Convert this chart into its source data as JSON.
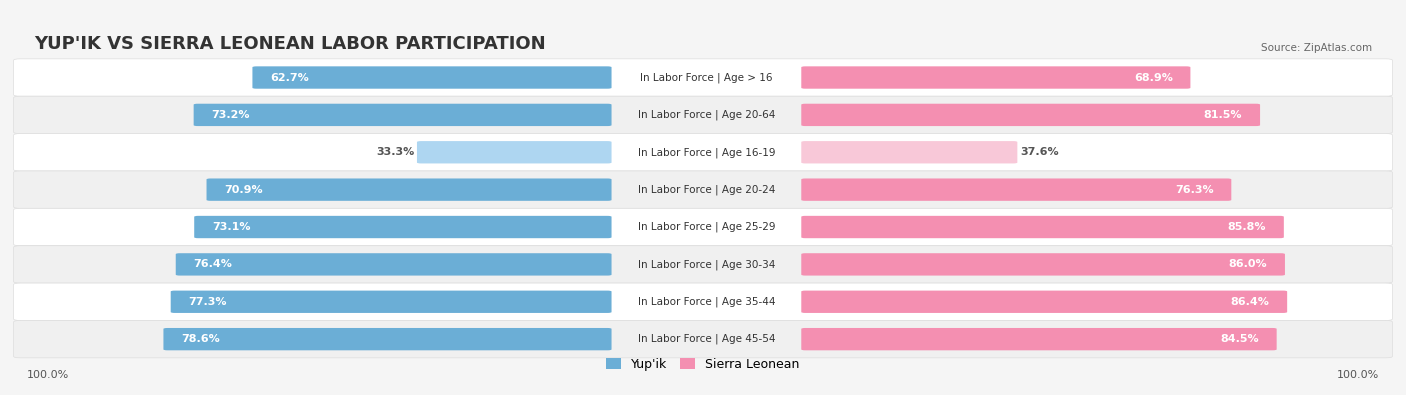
{
  "title": "YUP'IK VS SIERRA LEONEAN LABOR PARTICIPATION",
  "source": "Source: ZipAtlas.com",
  "categories": [
    "In Labor Force | Age > 16",
    "In Labor Force | Age 20-64",
    "In Labor Force | Age 16-19",
    "In Labor Force | Age 20-24",
    "In Labor Force | Age 25-29",
    "In Labor Force | Age 30-34",
    "In Labor Force | Age 35-44",
    "In Labor Force | Age 45-54"
  ],
  "yupik_values": [
    62.7,
    73.2,
    33.3,
    70.9,
    73.1,
    76.4,
    77.3,
    78.6
  ],
  "sierra_values": [
    68.9,
    81.5,
    37.6,
    76.3,
    85.8,
    86.0,
    86.4,
    84.5
  ],
  "yupik_color": "#6BAED6",
  "sierra_color": "#F48FB1",
  "yupik_color_light": "#AED6F1",
  "sierra_color_light": "#F8C8D8",
  "bg_color": "#F5F5F5",
  "row_bg": "#ECECEC",
  "label_fontsize": 8.5,
  "title_fontsize": 13,
  "max_val": 100.0,
  "legend_yupik": "Yup'ik",
  "legend_sierra": "Sierra Leonean"
}
